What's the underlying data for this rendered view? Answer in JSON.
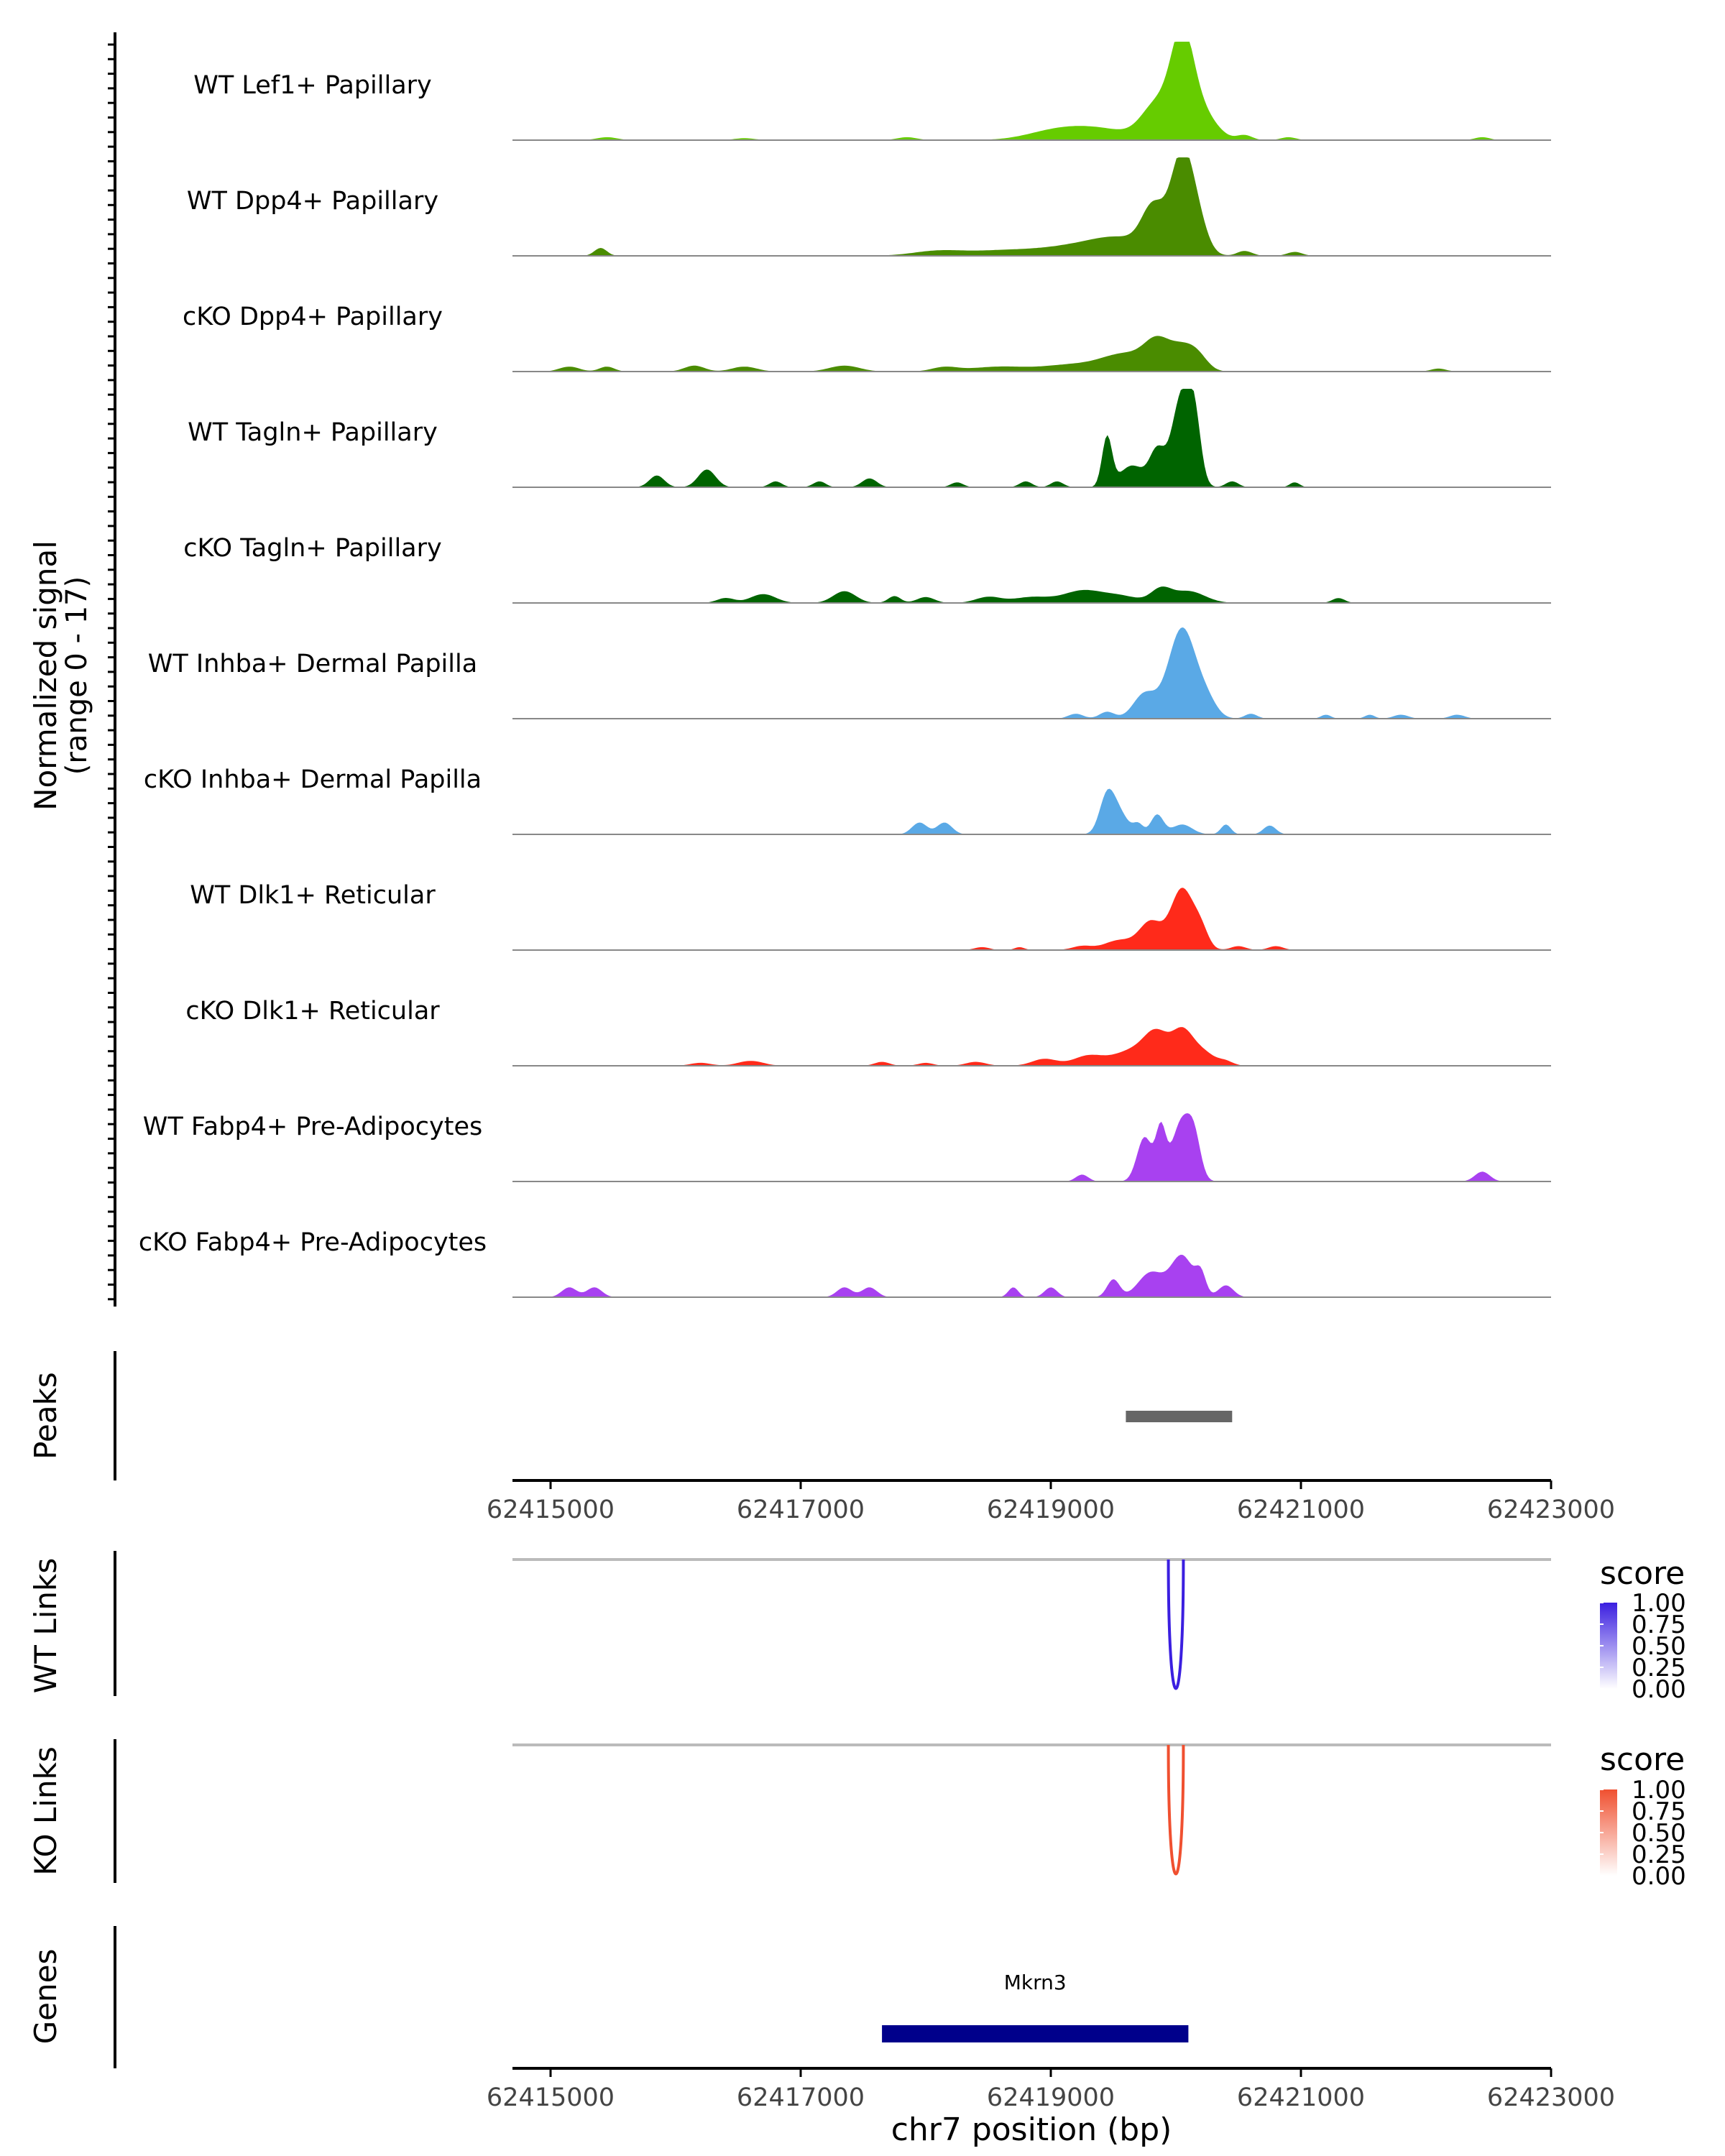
{
  "chart_data": [
    {
      "type": "area",
      "name": "coverage",
      "ylabel_line1": "Normalized signal",
      "ylabel_line2": "(range 0 - 17)",
      "ylim": [
        0,
        17
      ],
      "x_range": [
        62414850,
        62423000
      ],
      "tracks": [
        {
          "label": "WT Lef1+ Papillary",
          "color": "#66cc00",
          "peaks": [
            [
              62419000,
              220,
              0.06
            ],
            [
              62419350,
              280,
              0.12
            ],
            [
              62419850,
              120,
              0.35
            ],
            [
              62420050,
              90,
              0.95
            ],
            [
              62420200,
              120,
              0.28
            ],
            [
              62420550,
              60,
              0.05
            ],
            [
              62420900,
              60,
              0.03
            ],
            [
              62417850,
              80,
              0.03
            ],
            [
              62415450,
              80,
              0.03
            ],
            [
              62416550,
              80,
              0.02
            ],
            [
              62422450,
              60,
              0.03
            ]
          ]
        },
        {
          "label": "WT Dpp4+ Papillary",
          "color": "#4a8c00",
          "peaks": [
            [
              62415400,
              50,
              0.08
            ],
            [
              62418100,
              200,
              0.05
            ],
            [
              62418600,
              250,
              0.05
            ],
            [
              62419100,
              250,
              0.07
            ],
            [
              62419550,
              250,
              0.18
            ],
            [
              62419820,
              90,
              0.42
            ],
            [
              62420050,
              90,
              1.0
            ],
            [
              62420180,
              80,
              0.25
            ],
            [
              62420550,
              60,
              0.05
            ],
            [
              62420950,
              60,
              0.04
            ]
          ]
        },
        {
          "label": "cKO Dpp4+ Papillary",
          "color": "#4a8c00",
          "peaks": [
            [
              62415150,
              80,
              0.05
            ],
            [
              62415450,
              60,
              0.05
            ],
            [
              62416150,
              80,
              0.06
            ],
            [
              62416550,
              100,
              0.05
            ],
            [
              62417350,
              120,
              0.06
            ],
            [
              62418150,
              100,
              0.04
            ],
            [
              62418600,
              250,
              0.05
            ],
            [
              62419150,
              200,
              0.06
            ],
            [
              62419600,
              200,
              0.18
            ],
            [
              62419850,
              100,
              0.25
            ],
            [
              62420050,
              100,
              0.22
            ],
            [
              62420180,
              80,
              0.12
            ],
            [
              62422100,
              60,
              0.03
            ]
          ]
        },
        {
          "label": "WT Tagln+ Papillary",
          "color": "#006400",
          "peaks": [
            [
              62415850,
              60,
              0.12
            ],
            [
              62416250,
              70,
              0.18
            ],
            [
              62416800,
              50,
              0.06
            ],
            [
              62417150,
              50,
              0.06
            ],
            [
              62417550,
              60,
              0.09
            ],
            [
              62418250,
              50,
              0.05
            ],
            [
              62418800,
              50,
              0.06
            ],
            [
              62419050,
              50,
              0.06
            ],
            [
              62419450,
              40,
              0.5
            ],
            [
              62419650,
              100,
              0.22
            ],
            [
              62419850,
              60,
              0.35
            ],
            [
              62420050,
              80,
              0.95
            ],
            [
              62420150,
              50,
              0.5
            ],
            [
              62420450,
              50,
              0.06
            ],
            [
              62420950,
              40,
              0.05
            ]
          ]
        },
        {
          "label": "cKO Tagln+ Papillary",
          "color": "#006400",
          "peaks": [
            [
              62416400,
              70,
              0.05
            ],
            [
              62416700,
              100,
              0.09
            ],
            [
              62417350,
              90,
              0.12
            ],
            [
              62417750,
              50,
              0.07
            ],
            [
              62418000,
              70,
              0.06
            ],
            [
              62418500,
              100,
              0.06
            ],
            [
              62418850,
              150,
              0.06
            ],
            [
              62419250,
              150,
              0.12
            ],
            [
              62419550,
              150,
              0.07
            ],
            [
              62419880,
              80,
              0.13
            ],
            [
              62420100,
              130,
              0.12
            ],
            [
              62421300,
              50,
              0.05
            ]
          ]
        },
        {
          "label": "WT Inhba+ Dermal Papilla",
          "color": "#5aa9e6",
          "peaks": [
            [
              62419200,
              60,
              0.05
            ],
            [
              62419450,
              60,
              0.07
            ],
            [
              62419750,
              90,
              0.25
            ],
            [
              62420050,
              110,
              0.92
            ],
            [
              62420250,
              80,
              0.15
            ],
            [
              62420600,
              50,
              0.05
            ],
            [
              62421200,
              40,
              0.04
            ],
            [
              62421550,
              40,
              0.04
            ],
            [
              62421800,
              60,
              0.04
            ],
            [
              62422250,
              60,
              0.04
            ]
          ]
        },
        {
          "label": "cKO Inhba+ Dermal Papilla",
          "color": "#5aa9e6",
          "peaks": [
            [
              62417950,
              60,
              0.12
            ],
            [
              62418150,
              60,
              0.12
            ],
            [
              62419450,
              60,
              0.38
            ],
            [
              62419550,
              70,
              0.2
            ],
            [
              62419700,
              40,
              0.1
            ],
            [
              62419850,
              50,
              0.2
            ],
            [
              62420050,
              80,
              0.1
            ],
            [
              62420400,
              40,
              0.1
            ],
            [
              62420750,
              50,
              0.09
            ]
          ]
        },
        {
          "label": "WT Dlk1+ Reticular",
          "color": "#ff2a1a",
          "peaks": [
            [
              62418450,
              60,
              0.03
            ],
            [
              62418750,
              40,
              0.03
            ],
            [
              62419250,
              80,
              0.04
            ],
            [
              62419550,
              120,
              0.1
            ],
            [
              62419800,
              90,
              0.28
            ],
            [
              62420050,
              90,
              0.62
            ],
            [
              62420200,
              60,
              0.18
            ],
            [
              62420500,
              60,
              0.04
            ],
            [
              62420800,
              60,
              0.04
            ]
          ]
        },
        {
          "label": "cKO Dlk1+ Reticular",
          "color": "#ff2a1a",
          "peaks": [
            [
              62416200,
              80,
              0.03
            ],
            [
              62416600,
              100,
              0.05
            ],
            [
              62417650,
              60,
              0.04
            ],
            [
              62418000,
              60,
              0.03
            ],
            [
              62418400,
              80,
              0.04
            ],
            [
              62418950,
              100,
              0.07
            ],
            [
              62419300,
              120,
              0.1
            ],
            [
              62419650,
              150,
              0.15
            ],
            [
              62419850,
              100,
              0.3
            ],
            [
              62420050,
              80,
              0.3
            ],
            [
              62420200,
              100,
              0.15
            ],
            [
              62420400,
              60,
              0.04
            ]
          ]
        },
        {
          "label": "WT Fabp4+ Pre-Adipocytes",
          "color": "#a841f0",
          "peaks": [
            [
              62419250,
              50,
              0.07
            ],
            [
              62419750,
              60,
              0.45
            ],
            [
              62419880,
              40,
              0.5
            ],
            [
              62420050,
              80,
              0.62
            ],
            [
              62420150,
              50,
              0.3
            ],
            [
              62422450,
              60,
              0.1
            ]
          ]
        },
        {
          "label": "cKO Fabp4+ Pre-Adipocytes",
          "color": "#a841f0",
          "peaks": [
            [
              62415150,
              60,
              0.1
            ],
            [
              62415350,
              60,
              0.1
            ],
            [
              62417350,
              60,
              0.1
            ],
            [
              62417550,
              60,
              0.1
            ],
            [
              62418700,
              40,
              0.1
            ],
            [
              62419000,
              50,
              0.1
            ],
            [
              62419500,
              50,
              0.18
            ],
            [
              62419800,
              100,
              0.25
            ],
            [
              62420050,
              90,
              0.42
            ],
            [
              62420200,
              40,
              0.2
            ],
            [
              62420400,
              60,
              0.12
            ]
          ]
        }
      ]
    },
    {
      "type": "range",
      "name": "peaks",
      "ylabel": "Peaks",
      "color": "#666666",
      "ranges": [
        [
          62419600,
          62420450
        ]
      ],
      "ticks": [
        62415000,
        62417000,
        62419000,
        62421000,
        62423000
      ],
      "tick_labels": [
        "62415000",
        "62417000",
        "62419000",
        "62421000",
        "62423000"
      ]
    },
    {
      "type": "arc",
      "name": "wt-links",
      "ylabel": "WT Links",
      "legend_title": "score",
      "legend_labels": [
        "1.00",
        "0.75",
        "0.50",
        "0.25",
        "0.00"
      ],
      "arc_color": "#3b1fe0",
      "legend_top_color": "#3b1fe0",
      "arcs": [
        [
          62419940,
          62420060,
          1.0
        ]
      ]
    },
    {
      "type": "arc",
      "name": "ko-links",
      "ylabel": "KO Links",
      "legend_title": "score",
      "legend_labels": [
        "1.00",
        "0.75",
        "0.50",
        "0.25",
        "0.00"
      ],
      "arc_color": "#f05030",
      "legend_top_color": "#f05030",
      "arcs": [
        [
          62419940,
          62420060,
          1.0
        ]
      ]
    },
    {
      "type": "gene",
      "name": "genes",
      "ylabel": "Genes",
      "color": "#00008b",
      "genes": [
        {
          "name": "Mkrn3",
          "start": 62417650,
          "end": 62420100
        }
      ],
      "ticks": [
        62415000,
        62417000,
        62419000,
        62421000,
        62423000
      ],
      "tick_labels": [
        "62415000",
        "62417000",
        "62419000",
        "62421000",
        "62423000"
      ],
      "xlabel": "chr7 position (bp)"
    }
  ]
}
